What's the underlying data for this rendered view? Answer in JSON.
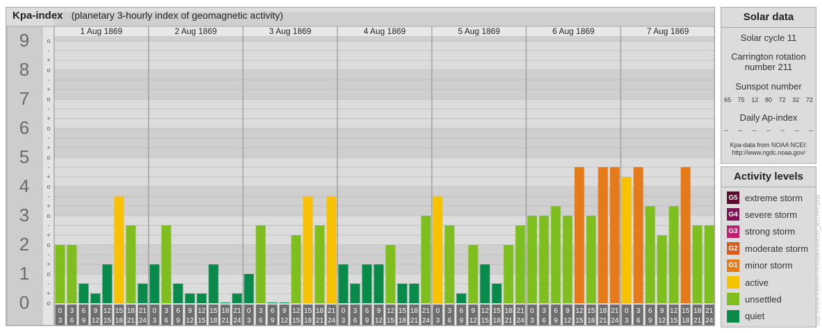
{
  "chart": {
    "title": "Kpa-index",
    "subtitle": "(planetary 3-hourly index of geomagnetic activity)"
  },
  "chart_data": {
    "type": "bar",
    "title": "Kpa-index",
    "subtitle": "(planetary 3-hourly index of geomagnetic activity)",
    "ylim": [
      0,
      9.67
    ],
    "y_ticks": [
      "0",
      "1",
      "2",
      "3",
      "4",
      "5",
      "6",
      "7",
      "8",
      "9"
    ],
    "y_subticks": [
      "o",
      "+",
      "-",
      "o",
      "+",
      "-",
      "o",
      "+",
      "-",
      "o",
      "+",
      "-",
      "o",
      "+",
      "-",
      "o",
      "+",
      "-",
      "o",
      "+",
      "-",
      "o",
      "+",
      "-",
      "o",
      "+",
      "-",
      "o"
    ],
    "days": [
      "1 Aug 1869",
      "2 Aug 1869",
      "3 Aug 1869",
      "4 Aug 1869",
      "5 Aug 1869",
      "6 Aug 1869",
      "7 Aug 1869"
    ],
    "interval_start": [
      "0",
      "3",
      "6",
      "9",
      "12",
      "15",
      "18",
      "21"
    ],
    "interval_end": [
      "3",
      "6",
      "9",
      "12",
      "15",
      "18",
      "21",
      "24"
    ],
    "values": [
      [
        2.0,
        2.0,
        0.67,
        0.33,
        1.33,
        3.67,
        2.67,
        0.67
      ],
      [
        1.33,
        2.67,
        0.67,
        0.33,
        0.33,
        1.33,
        0.0,
        0.33
      ],
      [
        1.0,
        2.67,
        0.0,
        0.0,
        2.33,
        3.67,
        2.67,
        3.67
      ],
      [
        1.33,
        0.67,
        1.33,
        1.33,
        2.0,
        0.67,
        0.67,
        3.0
      ],
      [
        3.67,
        2.67,
        0.33,
        2.0,
        1.33,
        0.67,
        2.0,
        2.67
      ],
      [
        3.0,
        3.0,
        3.33,
        3.0,
        4.67,
        3.0,
        4.67,
        4.67
      ],
      [
        4.33,
        4.67,
        3.33,
        2.33,
        3.33,
        4.67,
        2.67,
        2.67
      ]
    ]
  },
  "colors": {
    "quiet": "#0a8a4a",
    "unsettled": "#7ebf1f",
    "active": "#f7c200",
    "g1": "#e47a1a",
    "g2": "#e05818",
    "g3": "#c01c6c",
    "g4": "#7a1450",
    "g5": "#5a0a2a"
  },
  "solar": {
    "title": "Solar data",
    "cycle": "Solar cycle 11",
    "carrington": "Carrington rotation number 211",
    "sunspot_label": "Sunspot number",
    "sunspot_numbers": [
      "65",
      "75",
      "12",
      "80",
      "72",
      "32",
      "72"
    ],
    "ap_label": "Daily Ap-index",
    "ap_values": [
      "--",
      "--",
      "--",
      "--",
      "--",
      "--",
      "--"
    ],
    "source_line1": "Kpa-data from NOAA NCEI:",
    "source_line2": "http://www.ngdc.noaa.gov/"
  },
  "activity": {
    "title": "Activity levels",
    "levels": [
      {
        "code": "G5",
        "label": "extreme storm",
        "color": "#5a0a2a"
      },
      {
        "code": "G4",
        "label": "severe storm",
        "color": "#7a1450"
      },
      {
        "code": "G3",
        "label": "strong storm",
        "color": "#c01c6c"
      },
      {
        "code": "G2",
        "label": "moderate storm",
        "color": "#e05818"
      },
      {
        "code": "G1",
        "label": "minor storm",
        "color": "#e47a1a"
      },
      {
        "code": "",
        "label": "active",
        "color": "#f7c200"
      },
      {
        "code": "",
        "label": "unsettled",
        "color": "#7ebf1f"
      },
      {
        "code": "",
        "label": "quiet",
        "color": "#0a8a4a"
      }
    ]
  },
  "watermark": "http://www.theuserrofrealaurora.no_archive.php"
}
